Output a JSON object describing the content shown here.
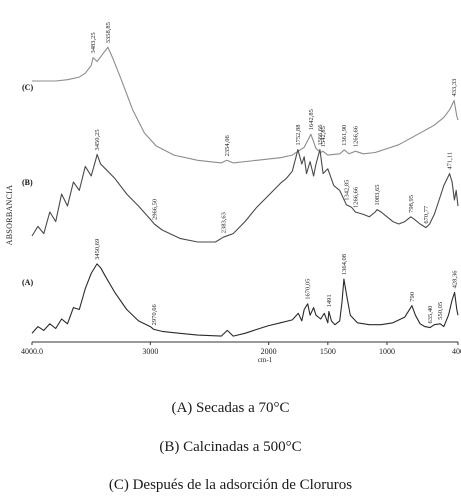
{
  "chart_data": {
    "type": "line",
    "ylabel": "ABSORBANCIA",
    "xlabel": "cm-1",
    "xlim": [
      4000,
      400
    ],
    "x_tick_labels": [
      {
        "value": 4000,
        "label": "4000.0"
      },
      {
        "value": 3000,
        "label": "3000"
      },
      {
        "value": 2000,
        "label": "2000"
      },
      {
        "value": 1500,
        "label": "1500"
      },
      {
        "value": 1000,
        "label": "1000"
      },
      {
        "value": 400,
        "label": "400"
      }
    ],
    "grid": false,
    "series": [
      {
        "name": "(C)",
        "color": "#8c8c8c",
        "points": [
          [
            4000,
            70
          ],
          [
            3800,
            70
          ],
          [
            3700,
            71
          ],
          [
            3600,
            73
          ],
          [
            3550,
            76
          ],
          [
            3500,
            82
          ],
          [
            3483.25,
            88
          ],
          [
            3450,
            85
          ],
          [
            3400,
            91
          ],
          [
            3358.85,
            96
          ],
          [
            3320,
            88
          ],
          [
            3250,
            72
          ],
          [
            3150,
            48
          ],
          [
            3050,
            30
          ],
          [
            2950,
            20
          ],
          [
            2800,
            13
          ],
          [
            2600,
            9
          ],
          [
            2400,
            7
          ],
          [
            2354.06,
            9
          ],
          [
            2300,
            7
          ],
          [
            2100,
            9
          ],
          [
            1900,
            11
          ],
          [
            1800,
            13
          ],
          [
            1700,
            19
          ],
          [
            1642.85,
            29
          ],
          [
            1600,
            18
          ],
          [
            1560,
            15
          ],
          [
            1542.85,
            16
          ],
          [
            1500,
            13
          ],
          [
            1400,
            14
          ],
          [
            1361.9,
            17
          ],
          [
            1320,
            14
          ],
          [
            1266.66,
            16
          ],
          [
            1200,
            14
          ],
          [
            1100,
            15
          ],
          [
            1000,
            18
          ],
          [
            900,
            21
          ],
          [
            800,
            26
          ],
          [
            700,
            31
          ],
          [
            600,
            36
          ],
          [
            520,
            42
          ],
          [
            470,
            48
          ],
          [
            433.33,
            55
          ],
          [
            410,
            43
          ],
          [
            400,
            40
          ]
        ],
        "peak_labels": [
          {
            "x": 3483.25,
            "label": "3483,25"
          },
          {
            "x": 3358.85,
            "label": "3358,85"
          },
          {
            "x": 2354.06,
            "label": "2354,06"
          },
          {
            "x": 1642.85,
            "label": "1642,85"
          },
          {
            "x": 1542.85,
            "label": "1542,85"
          },
          {
            "x": 1361.9,
            "label": "1361,90"
          },
          {
            "x": 1266.66,
            "label": "1266,66"
          },
          {
            "x": 433.33,
            "label": "433,33"
          }
        ]
      },
      {
        "name": "(B)",
        "color": "#4a4a4a",
        "points": [
          [
            4000,
            10
          ],
          [
            3950,
            18
          ],
          [
            3900,
            12
          ],
          [
            3850,
            30
          ],
          [
            3800,
            22
          ],
          [
            3750,
            45
          ],
          [
            3700,
            35
          ],
          [
            3650,
            55
          ],
          [
            3600,
            48
          ],
          [
            3550,
            68
          ],
          [
            3500,
            60
          ],
          [
            3460,
            74
          ],
          [
            3450.25,
            78
          ],
          [
            3420,
            70
          ],
          [
            3380,
            66
          ],
          [
            3300,
            58
          ],
          [
            3200,
            45
          ],
          [
            3100,
            35
          ],
          [
            3000,
            24
          ],
          [
            2966.5,
            20
          ],
          [
            2900,
            15
          ],
          [
            2750,
            8
          ],
          [
            2600,
            5
          ],
          [
            2450,
            5
          ],
          [
            2383.63,
            9
          ],
          [
            2300,
            12
          ],
          [
            2200,
            22
          ],
          [
            2100,
            34
          ],
          [
            2000,
            44
          ],
          [
            1900,
            54
          ],
          [
            1850,
            58
          ],
          [
            1800,
            64
          ],
          [
            1752.88,
            82
          ],
          [
            1720,
            70
          ],
          [
            1700,
            76
          ],
          [
            1680,
            62
          ],
          [
            1650,
            72
          ],
          [
            1620,
            60
          ],
          [
            1600,
            70
          ],
          [
            1566.66,
            82
          ],
          [
            1540,
            62
          ],
          [
            1500,
            66
          ],
          [
            1450,
            52
          ],
          [
            1400,
            48
          ],
          [
            1342.85,
            36
          ],
          [
            1300,
            34
          ],
          [
            1266.66,
            30
          ],
          [
            1200,
            28
          ],
          [
            1150,
            26
          ],
          [
            1100,
            30
          ],
          [
            1083.65,
            32
          ],
          [
            1050,
            30
          ],
          [
            1000,
            26
          ],
          [
            950,
            22
          ],
          [
            900,
            20
          ],
          [
            850,
            22
          ],
          [
            798.95,
            26
          ],
          [
            770,
            24
          ],
          [
            720,
            20
          ],
          [
            670.77,
            17
          ],
          [
            640,
            20
          ],
          [
            600,
            28
          ],
          [
            560,
            40
          ],
          [
            520,
            52
          ],
          [
            490,
            58
          ],
          [
            471.11,
            62
          ],
          [
            450,
            55
          ],
          [
            430,
            40
          ],
          [
            415,
            48
          ],
          [
            400,
            35
          ]
        ],
        "peak_labels": [
          {
            "x": 3450.25,
            "label": "3450,25"
          },
          {
            "x": 2966.5,
            "label": "2966,50"
          },
          {
            "x": 2383.63,
            "label": "2383,63"
          },
          {
            "x": 1752.88,
            "label": "1752,88"
          },
          {
            "x": 1566.66,
            "label": "1566,66"
          },
          {
            "x": 1342.85,
            "label": "1342,85"
          },
          {
            "x": 1266.66,
            "label": "1266,66"
          },
          {
            "x": 1083.65,
            "label": "1083,65"
          },
          {
            "x": 798.95,
            "label": "798,95"
          },
          {
            "x": 670.77,
            "label": "670,77"
          },
          {
            "x": 471.11,
            "label": "471,11"
          }
        ]
      },
      {
        "name": "(A)",
        "color": "#2a2a2a",
        "points": [
          [
            4000,
            5
          ],
          [
            3950,
            12
          ],
          [
            3900,
            8
          ],
          [
            3850,
            15
          ],
          [
            3800,
            10
          ],
          [
            3750,
            20
          ],
          [
            3700,
            15
          ],
          [
            3650,
            32
          ],
          [
            3600,
            30
          ],
          [
            3550,
            52
          ],
          [
            3500,
            68
          ],
          [
            3450.69,
            78
          ],
          [
            3420,
            74
          ],
          [
            3380,
            65
          ],
          [
            3300,
            48
          ],
          [
            3200,
            30
          ],
          [
            3100,
            18
          ],
          [
            3000,
            12
          ],
          [
            2970.66,
            9
          ],
          [
            2900,
            7
          ],
          [
            2750,
            5
          ],
          [
            2600,
            3
          ],
          [
            2400,
            2
          ],
          [
            2350,
            8
          ],
          [
            2300,
            2
          ],
          [
            2200,
            5
          ],
          [
            2100,
            9
          ],
          [
            2000,
            13
          ],
          [
            1900,
            16
          ],
          [
            1800,
            19
          ],
          [
            1750,
            26
          ],
          [
            1720,
            18
          ],
          [
            1700,
            30
          ],
          [
            1670.05,
            36
          ],
          [
            1650,
            24
          ],
          [
            1620,
            32
          ],
          [
            1600,
            24
          ],
          [
            1560,
            20
          ],
          [
            1530,
            26
          ],
          [
            1500,
            16
          ],
          [
            1491,
            28
          ],
          [
            1470,
            18
          ],
          [
            1440,
            14
          ],
          [
            1400,
            18
          ],
          [
            1380,
            38
          ],
          [
            1364.08,
            62
          ],
          [
            1340,
            44
          ],
          [
            1310,
            24
          ],
          [
            1250,
            16
          ],
          [
            1150,
            14
          ],
          [
            1050,
            14
          ],
          [
            950,
            16
          ],
          [
            850,
            22
          ],
          [
            790,
            34
          ],
          [
            760,
            24
          ],
          [
            720,
            15
          ],
          [
            680,
            12
          ],
          [
            635.4,
            11
          ],
          [
            600,
            14
          ],
          [
            550.05,
            15
          ],
          [
            520,
            12
          ],
          [
            480,
            24
          ],
          [
            450,
            40
          ],
          [
            428.36,
            48
          ],
          [
            410,
            30
          ],
          [
            400,
            24
          ]
        ],
        "peak_labels": [
          {
            "x": 3450.69,
            "label": "3450,69"
          },
          {
            "x": 2970.66,
            "label": "2970,66"
          },
          {
            "x": 1670.05,
            "label": "1670,05"
          },
          {
            "x": 1491,
            "label": "1491"
          },
          {
            "x": 1364.08,
            "label": "1364,08"
          },
          {
            "x": 790,
            "label": "790"
          },
          {
            "x": 635.4,
            "label": "635,40"
          },
          {
            "x": 550.05,
            "label": "550,05"
          },
          {
            "x": 428.36,
            "label": "428,36"
          }
        ]
      }
    ]
  },
  "captions": {
    "a": "(A) Secadas a 70°C",
    "b": "(B) Calcinadas a 500°C",
    "c": "(C) Después de la adsorción de Cloruros"
  }
}
